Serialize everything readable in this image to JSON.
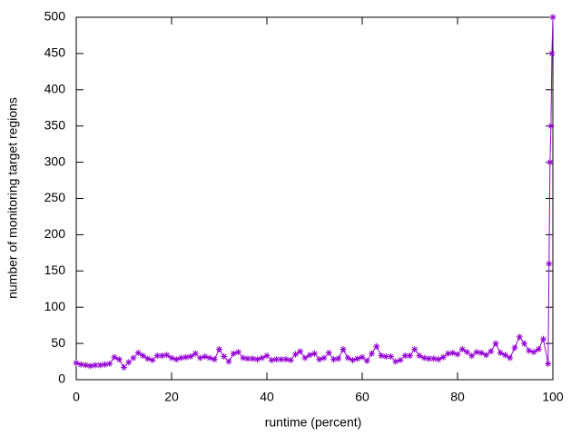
{
  "chart_data": {
    "type": "line",
    "x_label": "runtime (percent)",
    "y_label": "number of monitoring target regions",
    "xlim": [
      0,
      100
    ],
    "ylim": [
      0,
      500
    ],
    "xticks": [
      0,
      20,
      40,
      60,
      80,
      100
    ],
    "yticks": [
      0,
      50,
      100,
      150,
      200,
      250,
      300,
      350,
      400,
      450,
      500
    ],
    "grid": false,
    "series": [
      {
        "color": "#9400d3",
        "x": [
          0,
          1,
          2,
          3,
          4,
          5,
          6,
          7,
          8,
          9,
          10,
          11,
          12,
          13,
          14,
          15,
          16,
          17,
          18,
          19,
          20,
          21,
          22,
          23,
          24,
          25,
          26,
          27,
          28,
          29,
          30,
          31,
          32,
          33,
          34,
          35,
          36,
          37,
          38,
          39,
          40,
          41,
          42,
          43,
          44,
          45,
          46,
          47,
          48,
          49,
          50,
          51,
          52,
          53,
          54,
          55,
          56,
          57,
          58,
          59,
          60,
          61,
          62,
          63,
          64,
          65,
          66,
          67,
          68,
          69,
          70,
          71,
          72,
          73,
          74,
          75,
          76,
          77,
          78,
          79,
          80,
          81,
          82,
          83,
          84,
          85,
          86,
          87,
          88,
          89,
          90,
          91,
          92,
          93,
          94,
          95,
          96,
          97,
          98,
          99,
          99.2,
          99.4,
          99.6,
          99.8,
          100
        ],
        "values": [
          23,
          21,
          20,
          19,
          20,
          20,
          21,
          22,
          31,
          28,
          17,
          24,
          30,
          37,
          33,
          29,
          27,
          33,
          33,
          34,
          30,
          28,
          30,
          31,
          32,
          36,
          30,
          32,
          30,
          28,
          42,
          32,
          25,
          36,
          38,
          30,
          29,
          29,
          28,
          30,
          33,
          27,
          28,
          28,
          28,
          27,
          35,
          39,
          30,
          34,
          36,
          28,
          30,
          37,
          28,
          29,
          42,
          30,
          27,
          29,
          31,
          26,
          36,
          46,
          33,
          32,
          32,
          25,
          27,
          33,
          33,
          42,
          33,
          30,
          29,
          29,
          28,
          31,
          36,
          37,
          35,
          42,
          38,
          33,
          38,
          37,
          34,
          39,
          50,
          37,
          34,
          30,
          44,
          59,
          50,
          40,
          38,
          42,
          56,
          22,
          160,
          300,
          350,
          450,
          500
        ]
      }
    ]
  }
}
